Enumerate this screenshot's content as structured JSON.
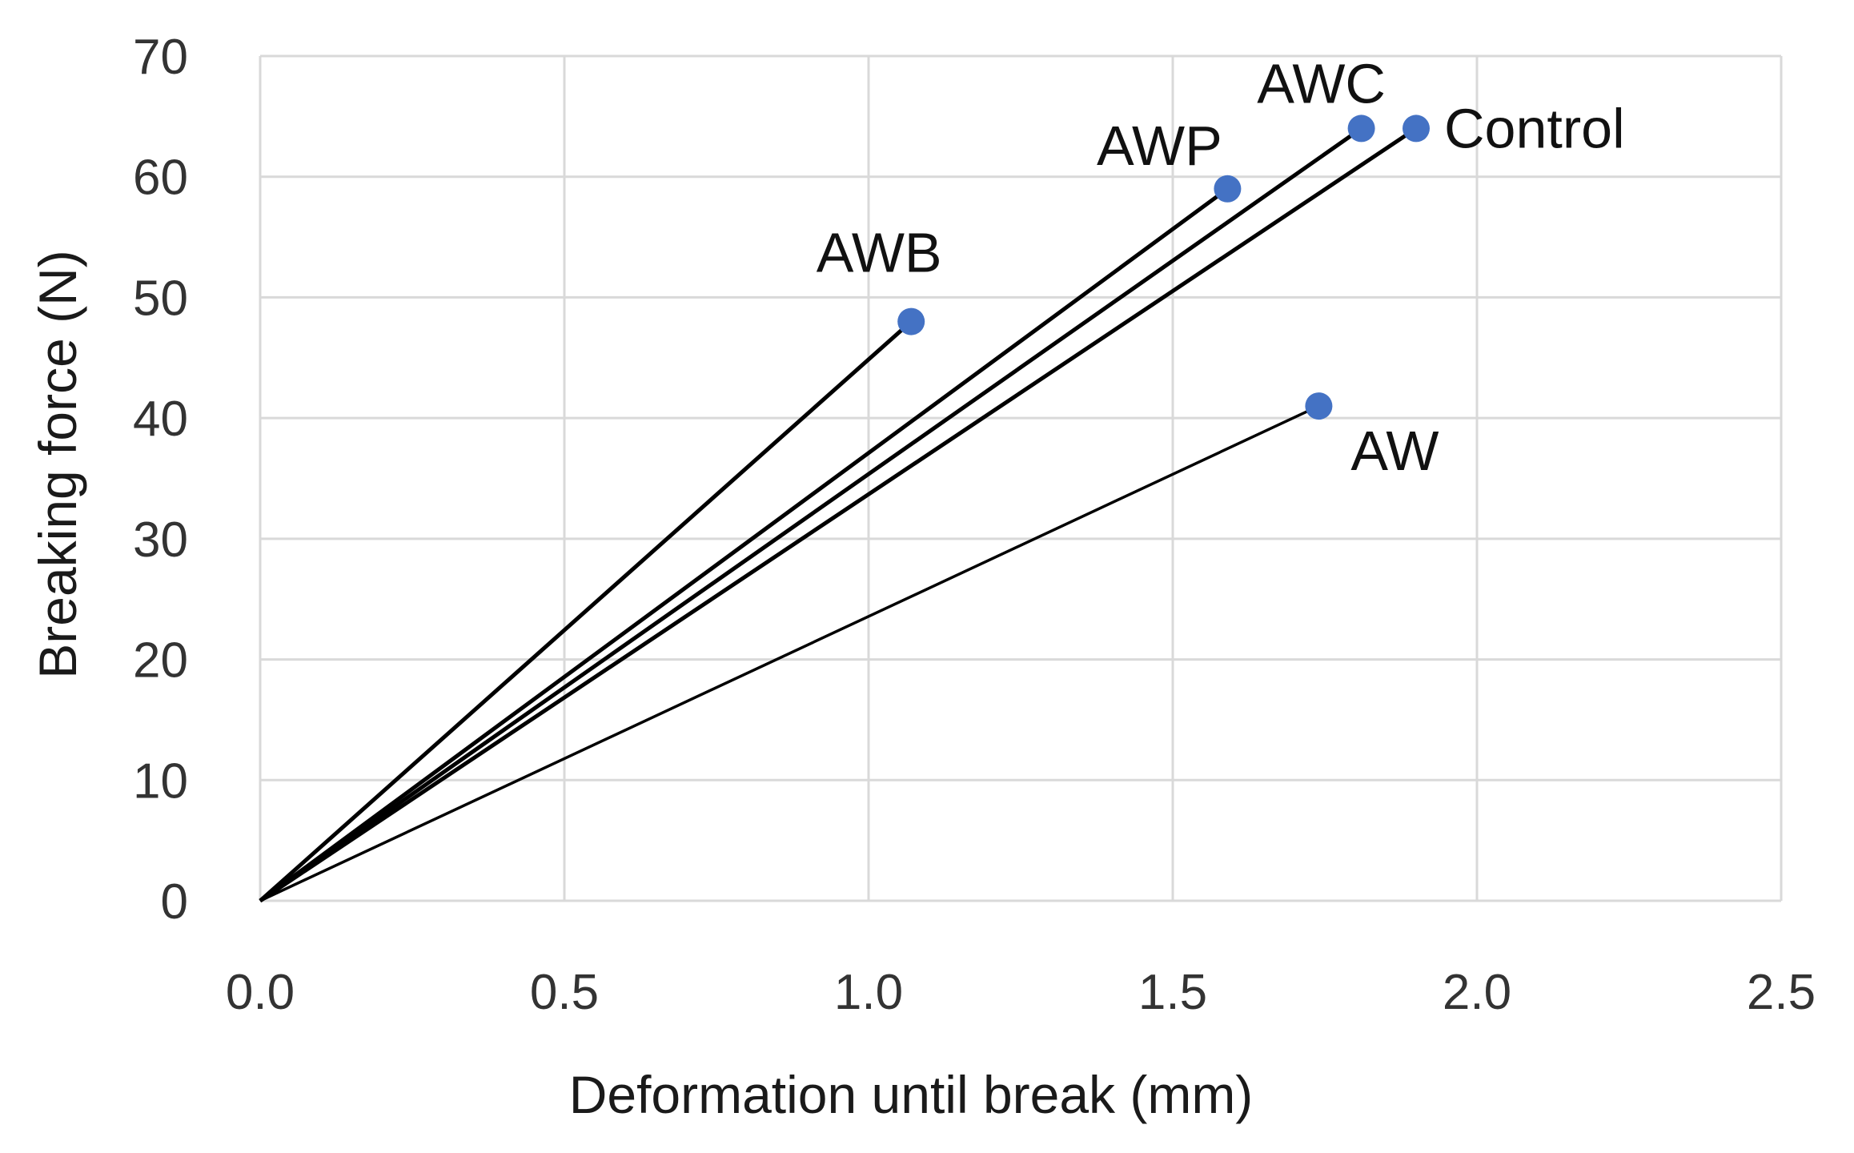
{
  "chart_data": {
    "type": "scatter",
    "title": "",
    "xlabel": "Deformation until break (mm)",
    "ylabel": "Breaking force (N)",
    "xlim": [
      0.0,
      2.5
    ],
    "ylim": [
      0,
      70
    ],
    "xticks": [
      "0.0",
      "0.5",
      "1.0",
      "1.5",
      "2.0",
      "2.5"
    ],
    "yticks": [
      "0",
      "10",
      "20",
      "30",
      "40",
      "50",
      "60",
      "70"
    ],
    "grid": true,
    "legend": "none",
    "lines_from_origin": true,
    "point_color": "#4472c4",
    "line_color": "#000000",
    "series": [
      {
        "name": "AWB",
        "x": 1.07,
        "y": 48
      },
      {
        "name": "AWP",
        "x": 1.59,
        "y": 59
      },
      {
        "name": "AWC",
        "x": 1.81,
        "y": 64
      },
      {
        "name": "Control",
        "x": 1.9,
        "y": 64
      },
      {
        "name": "AW",
        "x": 1.74,
        "y": 41
      }
    ]
  }
}
